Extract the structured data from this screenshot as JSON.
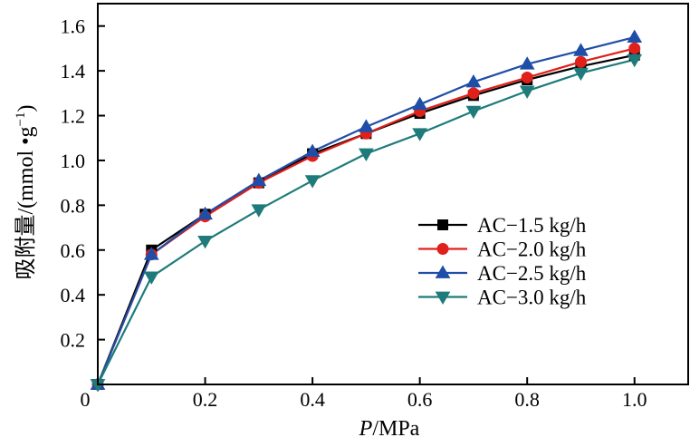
{
  "chart_data": {
    "type": "line",
    "xlabel_italic": "P",
    "xlabel_rest": "/MPa",
    "ylabel_main": "吸附量/(mmol •g",
    "ylabel_sup": "−1",
    "ylabel_close": ")",
    "xlim": [
      0,
      1.1
    ],
    "ylim": [
      0,
      1.7
    ],
    "x_ticks": [
      {
        "value": 0,
        "label": "0"
      },
      {
        "value": 0.2,
        "label": "0.2"
      },
      {
        "value": 0.4,
        "label": "0.4"
      },
      {
        "value": 0.6,
        "label": "0.6"
      },
      {
        "value": 0.8,
        "label": "0.8"
      },
      {
        "value": 1.0,
        "label": "1.0"
      }
    ],
    "y_ticks": [
      {
        "value": 0.2,
        "label": "0.2"
      },
      {
        "value": 0.4,
        "label": "0.4"
      },
      {
        "value": 0.6,
        "label": "0.6"
      },
      {
        "value": 0.8,
        "label": "0.8"
      },
      {
        "value": 1.0,
        "label": "1.0"
      },
      {
        "value": 1.2,
        "label": "1.2"
      },
      {
        "value": 1.4,
        "label": "1.4"
      },
      {
        "value": 1.6,
        "label": "1.6"
      }
    ],
    "x": [
      0,
      0.1,
      0.2,
      0.3,
      0.4,
      0.5,
      0.6,
      0.7,
      0.8,
      0.9,
      1.0
    ],
    "series": [
      {
        "name": "AC−1.5 kg/h",
        "color": "#000000",
        "marker": "square",
        "values": [
          0.0,
          0.6,
          0.76,
          0.9,
          1.03,
          1.12,
          1.21,
          1.29,
          1.36,
          1.42,
          1.47
        ]
      },
      {
        "name": "AC−2.0 kg/h",
        "color": "#e0201b",
        "marker": "circle",
        "values": [
          0.0,
          0.58,
          0.75,
          0.9,
          1.02,
          1.12,
          1.22,
          1.3,
          1.37,
          1.44,
          1.5
        ]
      },
      {
        "name": "AC−2.5 kg/h",
        "color": "#1f4ea8",
        "marker": "triangle-up",
        "values": [
          0.0,
          0.58,
          0.76,
          0.91,
          1.04,
          1.15,
          1.25,
          1.35,
          1.43,
          1.49,
          1.55
        ]
      },
      {
        "name": "AC−3.0 kg/h",
        "color": "#1f7b7b",
        "marker": "triangle-down",
        "values": [
          0.0,
          0.48,
          0.64,
          0.78,
          0.91,
          1.03,
          1.12,
          1.22,
          1.31,
          1.39,
          1.45
        ]
      }
    ],
    "legend_position": "lower-right",
    "grid": false
  }
}
